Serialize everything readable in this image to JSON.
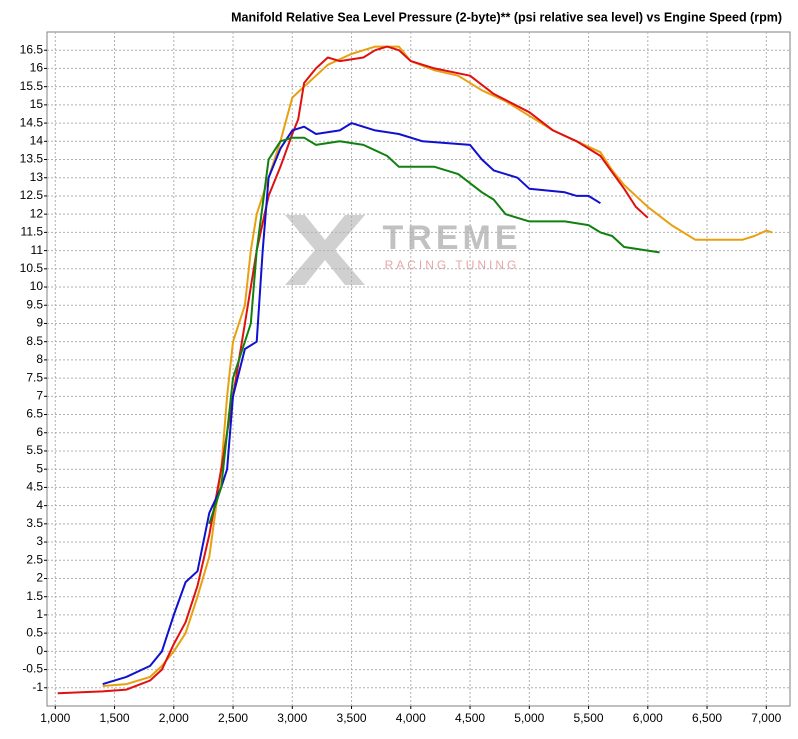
{
  "chart_data": {
    "type": "line",
    "title": "Manifold Relative Sea Level Pressure (2-byte)** (psi relative sea level) vs Engine Speed (rpm)",
    "watermark": "TREME",
    "watermark_sub": "RACING TUNING",
    "xlim": [
      930,
      7200
    ],
    "ylim": [
      -1.5,
      17
    ],
    "grid": true,
    "xticks": [
      {
        "value": 1000,
        "label": "1,000"
      },
      {
        "value": 1500,
        "label": "1,500"
      },
      {
        "value": 2000,
        "label": "2,000"
      },
      {
        "value": 2500,
        "label": "2,500"
      },
      {
        "value": 3000,
        "label": "3,000"
      },
      {
        "value": 3500,
        "label": "3,500"
      },
      {
        "value": 4000,
        "label": "4,000"
      },
      {
        "value": 4500,
        "label": "4,500"
      },
      {
        "value": 5000,
        "label": "5,000"
      },
      {
        "value": 5500,
        "label": "5,500"
      },
      {
        "value": 6000,
        "label": "6,000"
      },
      {
        "value": 6500,
        "label": "6,500"
      },
      {
        "value": 7000,
        "label": "7,000"
      }
    ],
    "yticks": [
      -1,
      -0.5,
      0,
      0.5,
      1,
      1.5,
      2,
      2.5,
      3,
      3.5,
      4,
      4.5,
      5,
      5.5,
      6,
      6.5,
      7,
      7.5,
      8,
      8.5,
      9,
      9.5,
      10,
      10.5,
      11,
      11.5,
      12,
      12.5,
      13,
      13.5,
      14,
      14.5,
      15,
      15.5,
      16,
      16.5
    ],
    "series": [
      {
        "color": "#e8a010",
        "x": [
          1400,
          1600,
          1800,
          1900,
          2000,
          2100,
          2200,
          2300,
          2400,
          2450,
          2500,
          2600,
          2650,
          2700,
          2800,
          2900,
          3000,
          3100,
          3300,
          3500,
          3700,
          3900,
          4000,
          4200,
          4400,
          4600,
          4800,
          5000,
          5200,
          5400,
          5600,
          5700,
          5800,
          6000,
          6200,
          6400,
          6600,
          6800,
          6900,
          7000,
          7050
        ],
        "values": [
          -0.95,
          -0.9,
          -0.7,
          -0.4,
          0,
          0.5,
          1.5,
          2.6,
          5,
          7,
          8.5,
          9.5,
          11,
          12,
          13,
          14,
          15.2,
          15.5,
          16.1,
          16.4,
          16.6,
          16.6,
          16.2,
          15.95,
          15.8,
          15.4,
          15.1,
          14.7,
          14.3,
          14.0,
          13.7,
          13.2,
          12.8,
          12.2,
          11.7,
          11.3,
          11.3,
          11.3,
          11.4,
          11.55,
          11.5
        ]
      },
      {
        "color": "#e01010",
        "x": [
          1020,
          1400,
          1600,
          1800,
          1900,
          2000,
          2100,
          2200,
          2300,
          2400,
          2500,
          2600,
          2700,
          2800,
          2900,
          3000,
          3050,
          3100,
          3200,
          3300,
          3400,
          3600,
          3700,
          3800,
          3900,
          4000,
          4200,
          4500,
          4700,
          5000,
          5200,
          5400,
          5600,
          5800,
          5900,
          6000
        ],
        "values": [
          -1.15,
          -1.1,
          -1.05,
          -0.8,
          -0.5,
          0.2,
          0.8,
          1.8,
          3.2,
          5,
          7,
          9,
          11,
          12.5,
          13.3,
          14.2,
          14.6,
          15.6,
          16,
          16.3,
          16.2,
          16.3,
          16.5,
          16.6,
          16.5,
          16.2,
          16,
          15.8,
          15.3,
          14.8,
          14.3,
          14.0,
          13.6,
          12.7,
          12.2,
          11.9
        ]
      },
      {
        "color": "#1010d0",
        "x": [
          1400,
          1600,
          1800,
          1900,
          2000,
          2100,
          2200,
          2300,
          2400,
          2450,
          2500,
          2600,
          2700,
          2750,
          2800,
          2900,
          3000,
          3100,
          3200,
          3400,
          3500,
          3700,
          3900,
          4100,
          4500,
          4600,
          4700,
          4900,
          5000,
          5300,
          5400,
          5500,
          5600
        ],
        "values": [
          -0.9,
          -0.7,
          -0.4,
          0,
          1,
          1.9,
          2.2,
          3.8,
          4.5,
          5,
          7,
          8.3,
          8.5,
          11,
          13,
          13.8,
          14.3,
          14.4,
          14.2,
          14.3,
          14.5,
          14.3,
          14.2,
          14.0,
          13.9,
          13.5,
          13.2,
          13.0,
          12.7,
          12.6,
          12.5,
          12.5,
          12.3
        ]
      },
      {
        "color": "#108010",
        "x": [
          2300,
          2400,
          2500,
          2600,
          2650,
          2700,
          2800,
          2900,
          3000,
          3100,
          3200,
          3400,
          3600,
          3800,
          3900,
          4200,
          4400,
          4600,
          4700,
          4800,
          5000,
          5300,
          5500,
          5600,
          5700,
          5800,
          6000,
          6100
        ],
        "values": [
          3.5,
          4.5,
          7.5,
          8.5,
          9,
          11,
          13.5,
          14.0,
          14.1,
          14.1,
          13.9,
          14.0,
          13.9,
          13.6,
          13.3,
          13.3,
          13.1,
          12.6,
          12.4,
          12.0,
          11.8,
          11.8,
          11.7,
          11.5,
          11.4,
          11.1,
          11.0,
          10.95
        ]
      }
    ]
  }
}
